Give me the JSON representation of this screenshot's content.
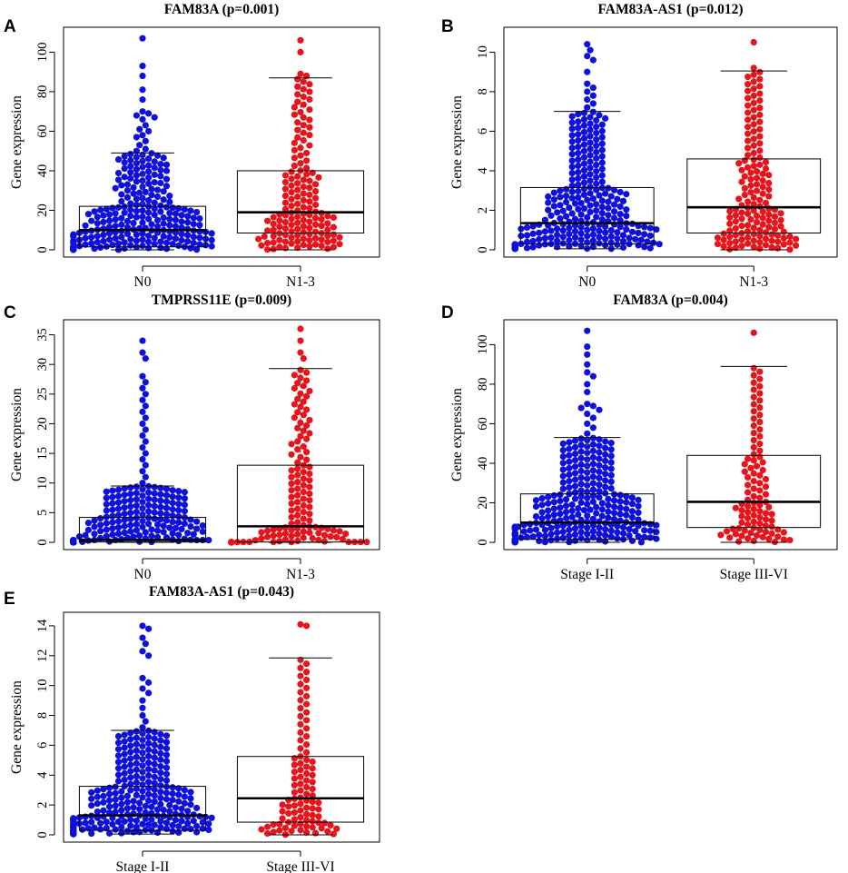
{
  "figure": {
    "colors": {
      "group1": "#1010dd",
      "group2": "#e8141b",
      "axis": "#000000",
      "box": "#000000"
    }
  },
  "chart_data": [
    {
      "panel": "A",
      "type": "scatter",
      "subtype": "beeswarm-boxplot",
      "title": "FAM83A (p=0.001)",
      "ylabel": "Gene expression",
      "xlabel": "",
      "ylim": [
        0,
        108
      ],
      "yticks": [
        0,
        20,
        40,
        60,
        80,
        100
      ],
      "groups": [
        {
          "name": "N0",
          "color": "#1010dd",
          "n": 300,
          "median": 10,
          "q1": 1.5,
          "q3": 22,
          "whisker_low": 0,
          "whisker_high": 49,
          "max": 107,
          "outliers": [
            50,
            51,
            53,
            55,
            57,
            58,
            60,
            61,
            63,
            66,
            67,
            68,
            69,
            70,
            76,
            81,
            88,
            93,
            107
          ]
        },
        {
          "name": "N1-3",
          "color": "#e8141b",
          "n": 150,
          "median": 19,
          "q1": 8.5,
          "q3": 40,
          "whisker_low": 0,
          "whisker_high": 87,
          "max": 106,
          "outliers": [
            88,
            89,
            100,
            106
          ]
        }
      ]
    },
    {
      "panel": "B",
      "type": "scatter",
      "subtype": "beeswarm-boxplot",
      "title": "FAM83A-AS1 (p=0.012)",
      "ylabel": "Gene expression",
      "xlabel": "",
      "ylim": [
        0,
        10.8
      ],
      "yticks": [
        0,
        2,
        4,
        6,
        8,
        10
      ],
      "groups": [
        {
          "name": "N0",
          "color": "#1010dd",
          "n": 300,
          "median": 1.35,
          "q1": 0.3,
          "q3": 3.15,
          "whisker_low": 0.05,
          "whisker_high": 7.0,
          "max": 10.4,
          "outliers": [
            7.2,
            7.4,
            7.6,
            7.8,
            8.0,
            8.2,
            8.4,
            9.0,
            9.6,
            9.8,
            10.1,
            10.4
          ]
        },
        {
          "name": "N1-3",
          "color": "#e8141b",
          "n": 150,
          "median": 2.15,
          "q1": 0.85,
          "q3": 4.6,
          "whisker_low": 0.0,
          "whisker_high": 9.05,
          "max": 10.5,
          "outliers": [
            9.2,
            10.5
          ]
        }
      ]
    },
    {
      "panel": "C",
      "type": "scatter",
      "subtype": "beeswarm-boxplot",
      "title": "TMPRSS11E (p=0.009)",
      "ylabel": "Gene expression",
      "xlabel": "",
      "ylim": [
        0,
        36
      ],
      "yticks": [
        0,
        5,
        10,
        15,
        20,
        25,
        30,
        35
      ],
      "groups": [
        {
          "name": "N0",
          "color": "#1010dd",
          "n": 300,
          "median": 0.4,
          "q1": 0.05,
          "q3": 4.2,
          "whisker_low": 0,
          "whisker_high": 9.5,
          "max": 34,
          "outliers": [
            10,
            11,
            12,
            13,
            14,
            15,
            16,
            17,
            18,
            19,
            20,
            21,
            22,
            23,
            24,
            25,
            26,
            27,
            28,
            31,
            32,
            34
          ]
        },
        {
          "name": "N1-3",
          "color": "#e8141b",
          "n": 150,
          "median": 2.7,
          "q1": 0.05,
          "q3": 13.0,
          "whisker_low": 0,
          "whisker_high": 29.3,
          "max": 36,
          "outliers": [
            31,
            32,
            34,
            36
          ]
        }
      ]
    },
    {
      "panel": "D",
      "type": "scatter",
      "subtype": "beeswarm-boxplot",
      "title": "FAM83A (p=0.004)",
      "ylabel": "Gene expression",
      "xlabel": "",
      "ylim": [
        0,
        108
      ],
      "yticks": [
        0,
        20,
        40,
        60,
        80,
        100
      ],
      "groups": [
        {
          "name": "Stage I-II",
          "color": "#1010dd",
          "n": 330,
          "median": 10,
          "q1": 1.5,
          "q3": 24.5,
          "whisker_low": 0,
          "whisker_high": 53,
          "max": 107,
          "outliers": [
            55,
            58,
            60,
            63,
            65,
            67,
            68,
            69,
            70,
            76,
            80,
            84,
            86,
            90,
            95,
            99,
            107
          ]
        },
        {
          "name": "Stage III-VI",
          "color": "#e8141b",
          "n": 100,
          "median": 20.5,
          "q1": 7.5,
          "q3": 44,
          "whisker_low": 0,
          "whisker_high": 89,
          "max": 106,
          "outliers": [
            106
          ]
        }
      ]
    },
    {
      "panel": "E",
      "type": "scatter",
      "subtype": "beeswarm-boxplot",
      "title": "FAM83A-AS1 (p=0.043)",
      "ylabel": "Gene expression",
      "xlabel": "",
      "ylim": [
        0,
        14.3
      ],
      "yticks": [
        0,
        2,
        4,
        6,
        8,
        10,
        12,
        14
      ],
      "groups": [
        {
          "name": "Stage I-II",
          "color": "#1010dd",
          "n": 330,
          "median": 1.3,
          "q1": 0.3,
          "q3": 3.25,
          "whisker_low": 0.05,
          "whisker_high": 7.0,
          "max": 14,
          "outliers": [
            7.2,
            7.6,
            8.0,
            8.5,
            9.0,
            9.5,
            9.8,
            10.2,
            10.5,
            12.0,
            12.3,
            12.8,
            13.2,
            13.8,
            14.0
          ]
        },
        {
          "name": "Stage III-VI",
          "color": "#e8141b",
          "n": 100,
          "median": 2.45,
          "q1": 0.85,
          "q3": 5.25,
          "whisker_low": 0.0,
          "whisker_high": 11.85,
          "max": 14.1,
          "outliers": [
            14.0,
            14.1
          ]
        }
      ]
    }
  ]
}
